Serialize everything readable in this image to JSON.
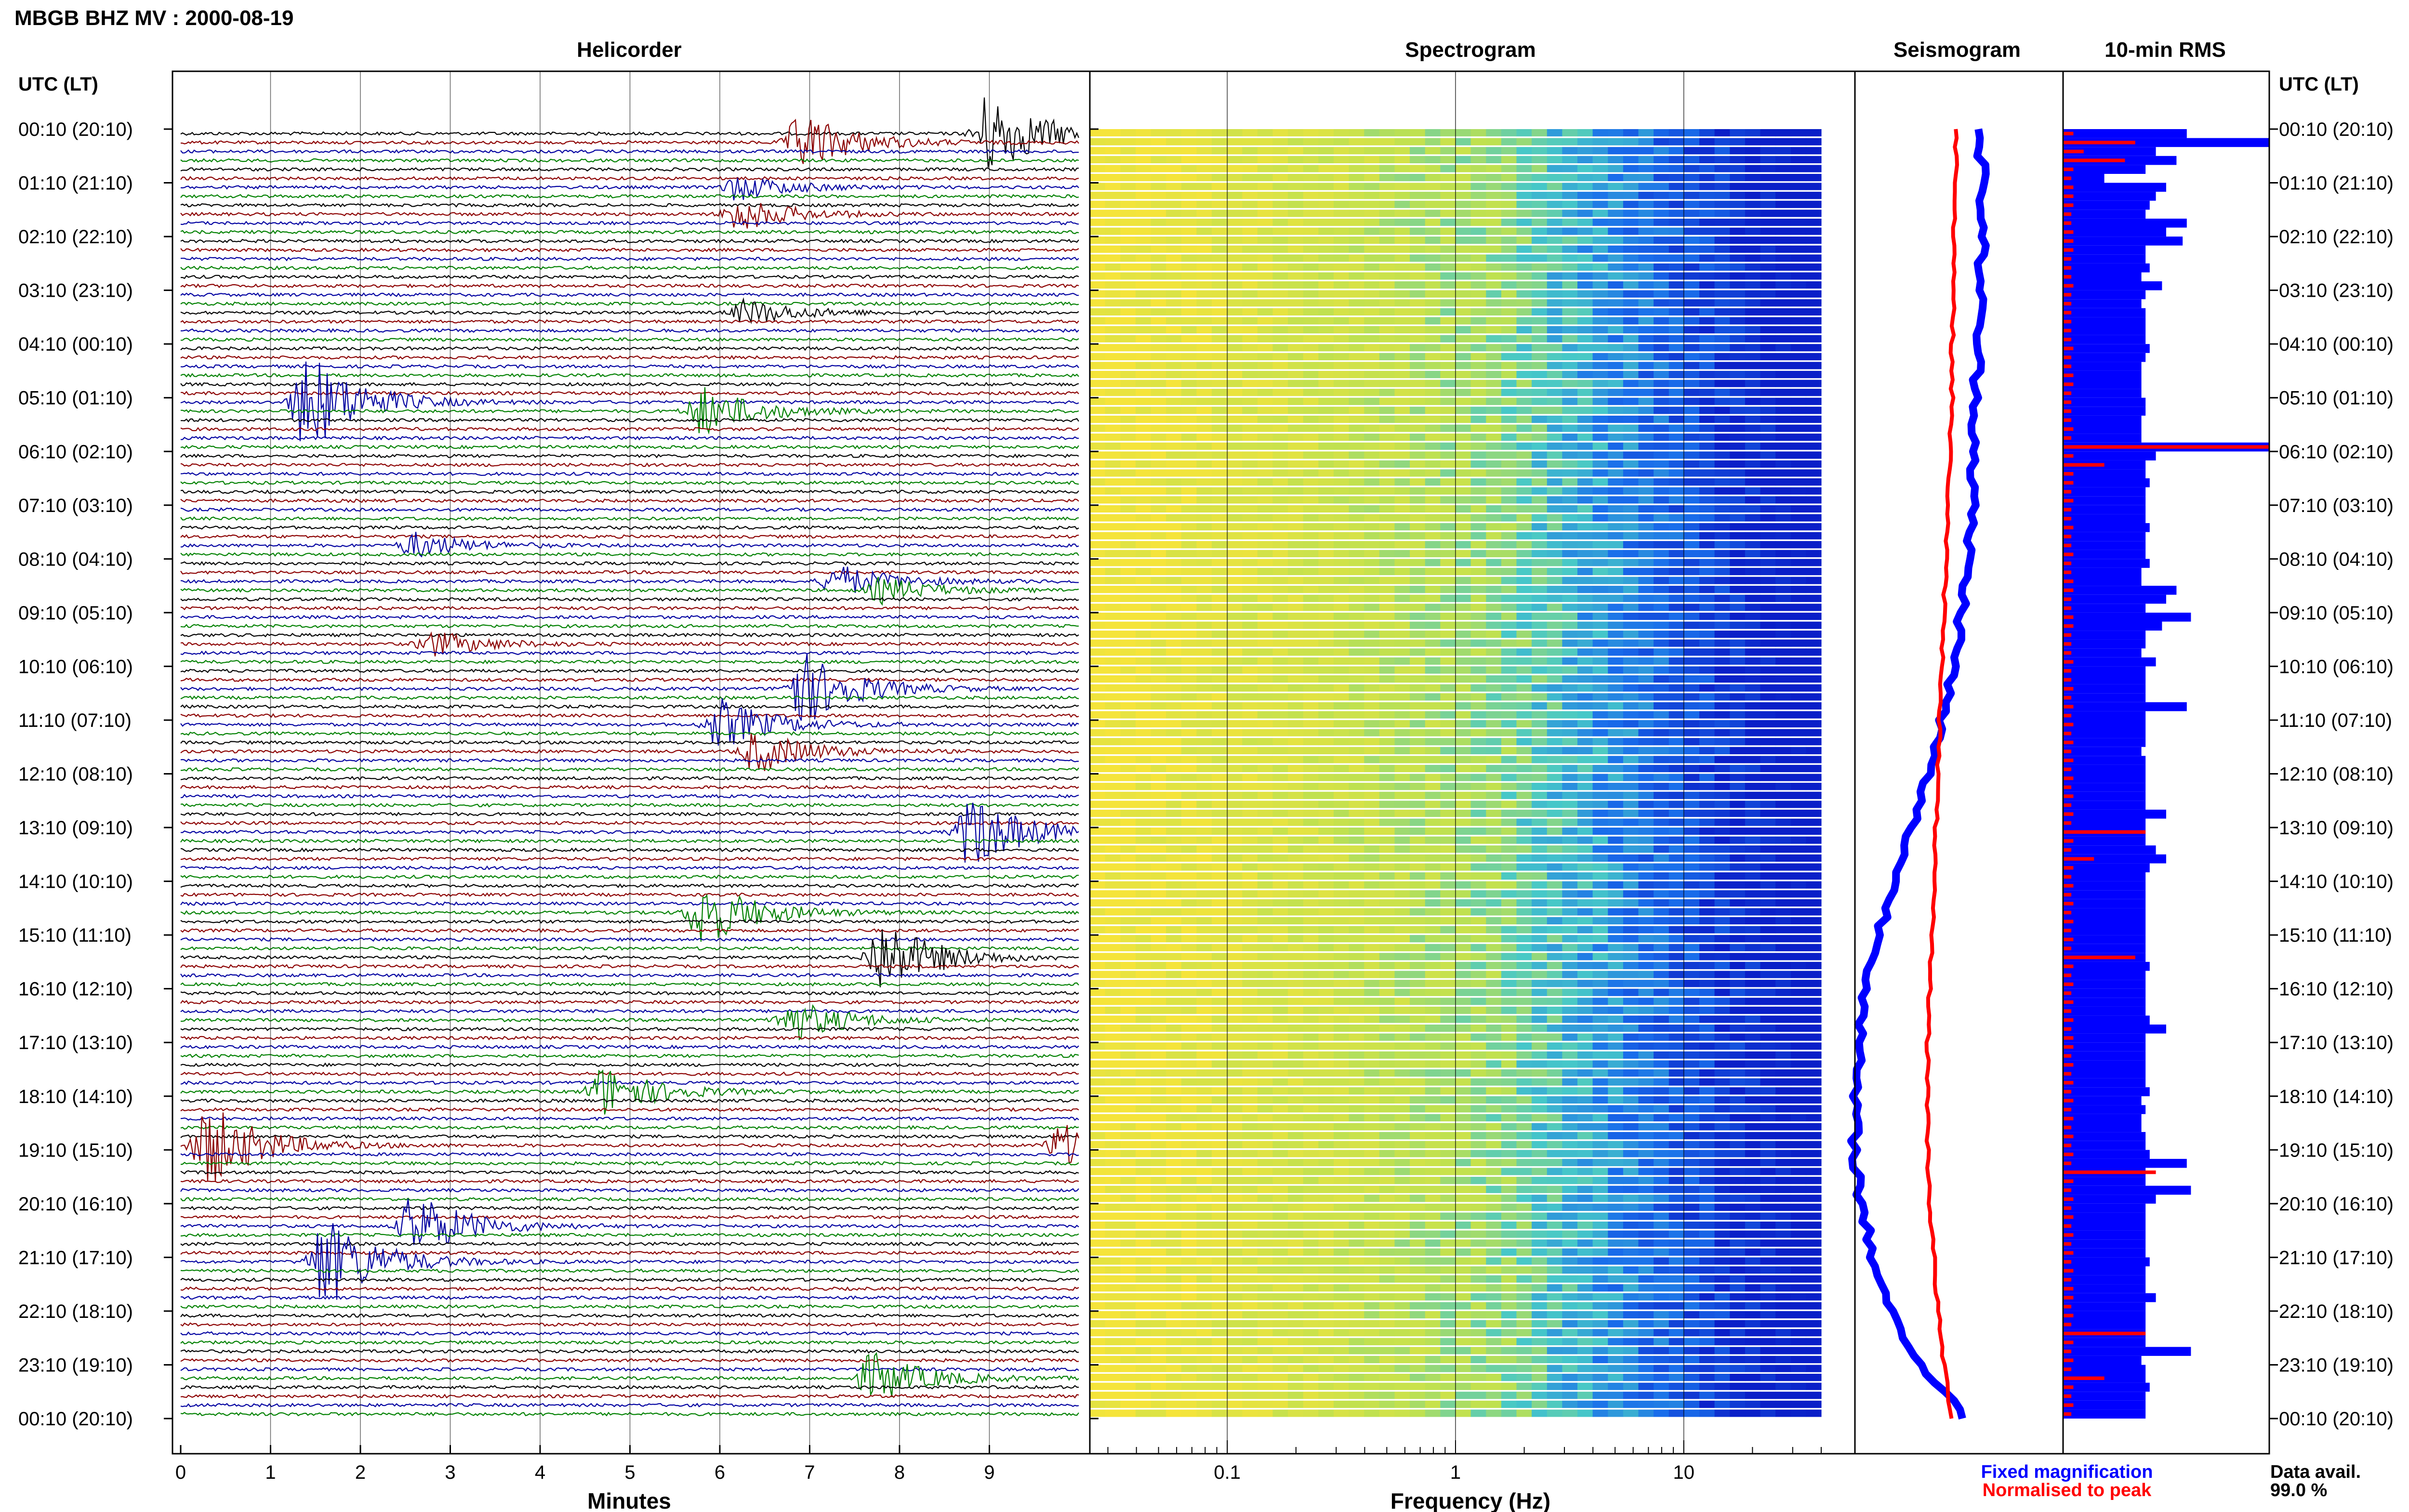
{
  "header": {
    "station_title": "MBGB BHZ MV : 2000-08-19",
    "utc_label_left": "UTC (LT)",
    "utc_label_right": "UTC (LT)"
  },
  "panels": {
    "helicorder": "Helicorder",
    "spectrogram": "Spectrogram",
    "seismogram": "Seismogram",
    "rms": "10-min RMS"
  },
  "axes": {
    "minutes_label": "Minutes",
    "frequency_label": "Frequency (Hz)",
    "minute_ticks": [
      "0",
      "1",
      "2",
      "3",
      "4",
      "5",
      "6",
      "7",
      "8",
      "9"
    ],
    "frequency_ticks": [
      "0.1",
      "1",
      "10"
    ]
  },
  "time_labels": [
    "00:10 (20:10)",
    "01:10 (21:10)",
    "02:10 (22:10)",
    "03:10 (23:10)",
    "04:10 (00:10)",
    "05:10 (01:10)",
    "06:10 (02:10)",
    "07:10 (03:10)",
    "08:10 (04:10)",
    "09:10 (05:10)",
    "10:10 (06:10)",
    "11:10 (07:10)",
    "12:10 (08:10)",
    "13:10 (09:10)",
    "14:10 (10:10)",
    "15:10 (11:10)",
    "16:10 (12:10)",
    "17:10 (13:10)",
    "18:10 (14:10)",
    "19:10 (15:10)",
    "20:10 (16:10)",
    "21:10 (17:10)",
    "22:10 (18:10)",
    "23:10 (19:10)",
    "00:10 (20:10)"
  ],
  "legend": {
    "fixed": "Fixed magnification",
    "normalised": "Normalised to peak",
    "data_avail_label": "Data avail.",
    "data_avail_value": "99.0 %"
  },
  "colors": {
    "trace_palette": [
      "#000000",
      "#8b0000",
      "#0000a0",
      "#008000"
    ],
    "fixed": "#0000ff",
    "normalised": "#ff0000",
    "spectro_low": "#f5e43a",
    "spectro_high": "#0a1fc8"
  },
  "chart_data": [
    {
      "type": "line",
      "panel": "Helicorder",
      "xlabel": "Minutes",
      "xlim": [
        0,
        10
      ],
      "rows": 144,
      "row_minutes": 10,
      "events": [
        {
          "row": 0,
          "minute": 9.0,
          "amp": 1.0
        },
        {
          "row": 1,
          "minute": 6.9,
          "amp": 0.7
        },
        {
          "row": 6,
          "minute": 6.2,
          "amp": 0.3
        },
        {
          "row": 9,
          "minute": 6.2,
          "amp": 0.4
        },
        {
          "row": 20,
          "minute": 6.3,
          "amp": 0.3
        },
        {
          "row": 30,
          "minute": 1.4,
          "amp": 1.2
        },
        {
          "row": 31,
          "minute": 5.8,
          "amp": 0.6
        },
        {
          "row": 46,
          "minute": 2.6,
          "amp": 0.3
        },
        {
          "row": 50,
          "minute": 7.3,
          "amp": 0.4
        },
        {
          "row": 51,
          "minute": 7.8,
          "amp": 0.3
        },
        {
          "row": 57,
          "minute": 2.8,
          "amp": 0.3
        },
        {
          "row": 62,
          "minute": 6.9,
          "amp": 0.9
        },
        {
          "row": 66,
          "minute": 6.0,
          "amp": 0.6
        },
        {
          "row": 69,
          "minute": 6.4,
          "amp": 0.5
        },
        {
          "row": 78,
          "minute": 8.8,
          "amp": 0.9
        },
        {
          "row": 87,
          "minute": 5.8,
          "amp": 0.8
        },
        {
          "row": 92,
          "minute": 7.8,
          "amp": 0.9
        },
        {
          "row": 99,
          "minute": 6.8,
          "amp": 0.5
        },
        {
          "row": 107,
          "minute": 4.7,
          "amp": 0.6
        },
        {
          "row": 113,
          "minute": 0.3,
          "amp": 1.0
        },
        {
          "row": 113,
          "minute": 9.8,
          "amp": 0.5
        },
        {
          "row": 122,
          "minute": 2.6,
          "amp": 0.8
        },
        {
          "row": 126,
          "minute": 1.6,
          "amp": 1.1
        },
        {
          "row": 139,
          "minute": 7.7,
          "amp": 0.6
        }
      ]
    },
    {
      "type": "heatmap",
      "panel": "Spectrogram",
      "xlabel": "Frequency (Hz)",
      "xscale": "log",
      "xlim": [
        0.025,
        40
      ],
      "rows": 144
    },
    {
      "type": "line",
      "panel": "Seismogram",
      "series": [
        {
          "name": "Fixed magnification",
          "x_by_hour": [
            0.62,
            0.63,
            0.63,
            0.62,
            0.61,
            0.6,
            0.59,
            0.58,
            0.56,
            0.53,
            0.49,
            0.43,
            0.36,
            0.28,
            0.2,
            0.12,
            0.06,
            0.02,
            0.0,
            0.0,
            0.03,
            0.09,
            0.18,
            0.32,
            0.55
          ]
        },
        {
          "name": "Normalised to peak",
          "x_by_hour": [
            0.5,
            0.5,
            0.49,
            0.49,
            0.48,
            0.48,
            0.47,
            0.46,
            0.45,
            0.44,
            0.43,
            0.42,
            0.41,
            0.4,
            0.39,
            0.38,
            0.37,
            0.36,
            0.36,
            0.36,
            0.37,
            0.39,
            0.41,
            0.44,
            0.48
          ]
        }
      ]
    },
    {
      "type": "bar",
      "panel": "10-min RMS",
      "series": [
        {
          "name": "Fixed magnification",
          "values": [
            0.6,
            1.0,
            0.45,
            0.55,
            0.4,
            0.2,
            0.5,
            0.45,
            0.42,
            0.4,
            0.6,
            0.5,
            0.58,
            0.4,
            0.4,
            0.42,
            0.38,
            0.48,
            0.4,
            0.38,
            0.4,
            0.4,
            0.4,
            0.4,
            0.42,
            0.4,
            0.38,
            0.38,
            0.38,
            0.38,
            0.4,
            0.4,
            0.38,
            0.38,
            0.38,
            1.0,
            0.45,
            0.4,
            0.4,
            0.42,
            0.4,
            0.4,
            0.4,
            0.4,
            0.42,
            0.4,
            0.4,
            0.4,
            0.42,
            0.38,
            0.38,
            0.55,
            0.5,
            0.4,
            0.62,
            0.48,
            0.4,
            0.4,
            0.38,
            0.45,
            0.4,
            0.4,
            0.4,
            0.4,
            0.6,
            0.4,
            0.4,
            0.4,
            0.4,
            0.38,
            0.4,
            0.4,
            0.4,
            0.4,
            0.4,
            0.4,
            0.5,
            0.4,
            0.4,
            0.4,
            0.45,
            0.5,
            0.42,
            0.4,
            0.4,
            0.4,
            0.4,
            0.4,
            0.4,
            0.4,
            0.4,
            0.4,
            0.4,
            0.42,
            0.4,
            0.4,
            0.4,
            0.4,
            0.4,
            0.42,
            0.5,
            0.4,
            0.4,
            0.4,
            0.4,
            0.4,
            0.4,
            0.42,
            0.38,
            0.4,
            0.38,
            0.38,
            0.4,
            0.4,
            0.42,
            0.6,
            0.4,
            0.4,
            0.62,
            0.45,
            0.4,
            0.4,
            0.4,
            0.4,
            0.4,
            0.4,
            0.42,
            0.4,
            0.4,
            0.4,
            0.45,
            0.4,
            0.4,
            0.4,
            0.4,
            0.4,
            0.62,
            0.38,
            0.4,
            0.4,
            0.42,
            0.4,
            0.4,
            0.4
          ]
        },
        {
          "name": "Normalised to peak",
          "values": [
            0.05,
            0.35,
            0.1,
            0.3,
            0.05,
            0.04,
            0.05,
            0.05,
            0.05,
            0.04,
            0.04,
            0.05,
            0.05,
            0.05,
            0.04,
            0.04,
            0.04,
            0.05,
            0.04,
            0.04,
            0.04,
            0.04,
            0.04,
            0.04,
            0.05,
            0.04,
            0.04,
            0.05,
            0.05,
            0.04,
            0.04,
            0.04,
            0.04,
            0.05,
            0.04,
            1.0,
            0.05,
            0.2,
            0.05,
            0.05,
            0.04,
            0.05,
            0.04,
            0.04,
            0.05,
            0.04,
            0.04,
            0.05,
            0.04,
            0.04,
            0.05,
            0.05,
            0.04,
            0.04,
            0.05,
            0.05,
            0.04,
            0.04,
            0.04,
            0.05,
            0.04,
            0.04,
            0.05,
            0.04,
            0.05,
            0.04,
            0.05,
            0.04,
            0.05,
            0.04,
            0.05,
            0.04,
            0.05,
            0.04,
            0.05,
            0.04,
            0.05,
            0.04,
            0.4,
            0.05,
            0.04,
            0.15,
            0.05,
            0.04,
            0.05,
            0.04,
            0.05,
            0.04,
            0.05,
            0.04,
            0.05,
            0.04,
            0.35,
            0.05,
            0.04,
            0.05,
            0.04,
            0.05,
            0.04,
            0.05,
            0.04,
            0.05,
            0.05,
            0.04,
            0.05,
            0.04,
            0.05,
            0.04,
            0.05,
            0.04,
            0.05,
            0.04,
            0.05,
            0.04,
            0.05,
            0.04,
            0.45,
            0.05,
            0.04,
            0.05,
            0.04,
            0.05,
            0.04,
            0.05,
            0.04,
            0.05,
            0.04,
            0.05,
            0.04,
            0.05,
            0.05,
            0.04,
            0.05,
            0.04,
            0.4,
            0.05,
            0.04,
            0.05,
            0.04,
            0.2,
            0.05,
            0.04,
            0.05,
            0.04
          ]
        }
      ]
    }
  ]
}
